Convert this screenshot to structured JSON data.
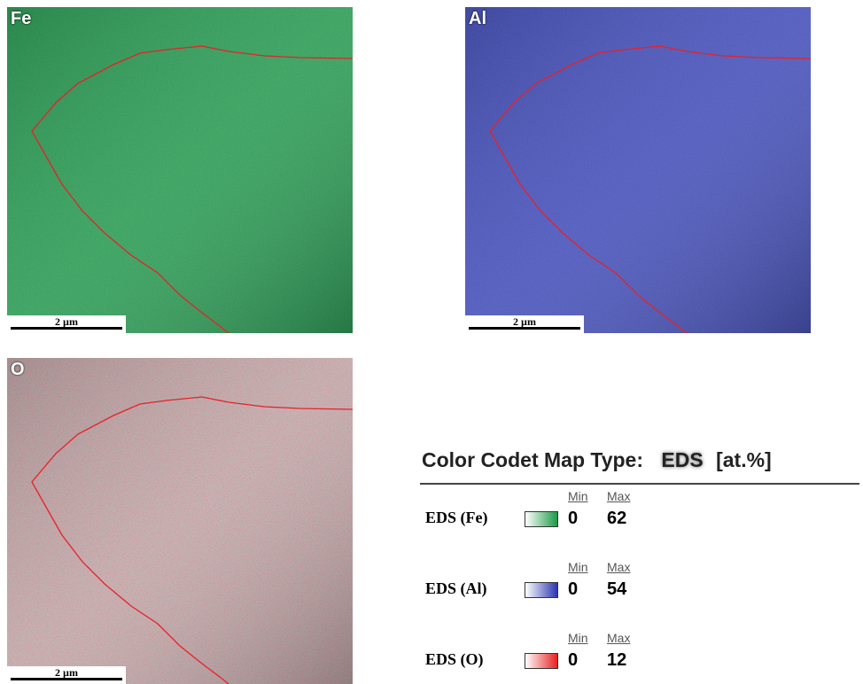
{
  "panels": [
    {
      "label": "Fe",
      "scale": "2 µm"
    },
    {
      "label": "Al",
      "scale": "2 µm"
    },
    {
      "label": "O",
      "scale": "2 µm"
    }
  ],
  "legend": {
    "title": "Color Codet Map Type:",
    "mode": "EDS",
    "unit": "[at.%]",
    "rows": [
      {
        "name": "EDS (Fe)",
        "min_label": "Min",
        "max_label": "Max",
        "min": 0,
        "max": 62
      },
      {
        "name": "EDS (Al)",
        "min_label": "Min",
        "max_label": "Max",
        "min": 0,
        "max": 54
      },
      {
        "name": "EDS (O)",
        "min_label": "Min",
        "max_label": "Max",
        "min": 0,
        "max": 12
      }
    ]
  }
}
